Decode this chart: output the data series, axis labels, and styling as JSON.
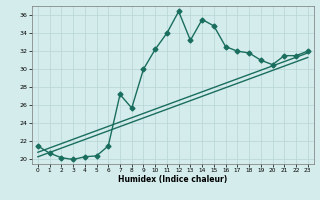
{
  "title": "",
  "xlabel": "Humidex (Indice chaleur)",
  "ylabel": "",
  "bg_color": "#d4ecec",
  "grid_color": "#b8d4d4",
  "line_color": "#1a6e5e",
  "xlim": [
    -0.5,
    23.5
  ],
  "ylim": [
    19.5,
    37.0
  ],
  "yticks": [
    20,
    22,
    24,
    26,
    28,
    30,
    32,
    34,
    36
  ],
  "xticks": [
    0,
    1,
    2,
    3,
    4,
    5,
    6,
    7,
    8,
    9,
    10,
    11,
    12,
    13,
    14,
    15,
    16,
    17,
    18,
    19,
    20,
    21,
    22,
    23
  ],
  "line1_x": [
    0,
    1,
    2,
    3,
    4,
    5,
    6,
    7,
    8,
    9,
    10,
    11,
    12,
    13,
    14,
    15,
    16,
    17,
    18,
    19,
    20,
    21,
    22,
    23
  ],
  "line1_y": [
    21.5,
    20.7,
    20.2,
    20.0,
    20.3,
    20.4,
    21.5,
    27.2,
    25.7,
    30.0,
    32.2,
    34.0,
    36.4,
    33.2,
    35.5,
    34.8,
    32.5,
    32.0,
    31.8,
    31.0,
    30.5,
    31.5,
    31.5,
    32.0
  ],
  "line2_x": [
    0,
    23
  ],
  "line2_y": [
    20.8,
    31.8
  ],
  "line3_x": [
    0,
    23
  ],
  "line3_y": [
    20.3,
    31.3
  ],
  "marker_size": 2.5,
  "line_width": 1.0
}
